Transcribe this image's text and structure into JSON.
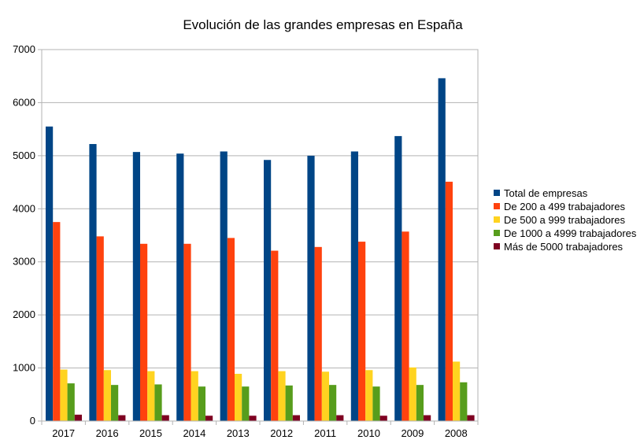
{
  "chart_data": {
    "type": "bar",
    "title": "Evolución de las grandes empresas en España",
    "xlabel": "",
    "ylabel": "",
    "ylim": [
      0,
      7000
    ],
    "yticks": [
      0,
      1000,
      2000,
      3000,
      4000,
      5000,
      6000,
      7000
    ],
    "grid": "horizontal",
    "legend_position": "right",
    "categories": [
      "2017",
      "2016",
      "2015",
      "2014",
      "2013",
      "2012",
      "2011",
      "2010",
      "2009",
      "2008"
    ],
    "series": [
      {
        "name": "Total de empresas",
        "color": "#004586",
        "values": [
          5550,
          5220,
          5070,
          5040,
          5080,
          4920,
          5000,
          5080,
          5370,
          6460
        ]
      },
      {
        "name": "De 200 a 499 trabajadores",
        "color": "#ff420e",
        "values": [
          3750,
          3480,
          3340,
          3340,
          3450,
          3210,
          3280,
          3380,
          3570,
          4510
        ]
      },
      {
        "name": "De 500 a 999 trabajadores",
        "color": "#ffd320",
        "values": [
          970,
          960,
          940,
          940,
          890,
          940,
          930,
          960,
          1010,
          1120
        ]
      },
      {
        "name": "De 1000 a 4999 trabajadores",
        "color": "#579d1c",
        "values": [
          710,
          680,
          690,
          650,
          650,
          670,
          680,
          650,
          680,
          730
        ]
      },
      {
        "name": "Más de 5000 trabajadores",
        "color": "#7e0021",
        "values": [
          120,
          110,
          110,
          100,
          100,
          110,
          110,
          100,
          110,
          110
        ]
      }
    ]
  }
}
